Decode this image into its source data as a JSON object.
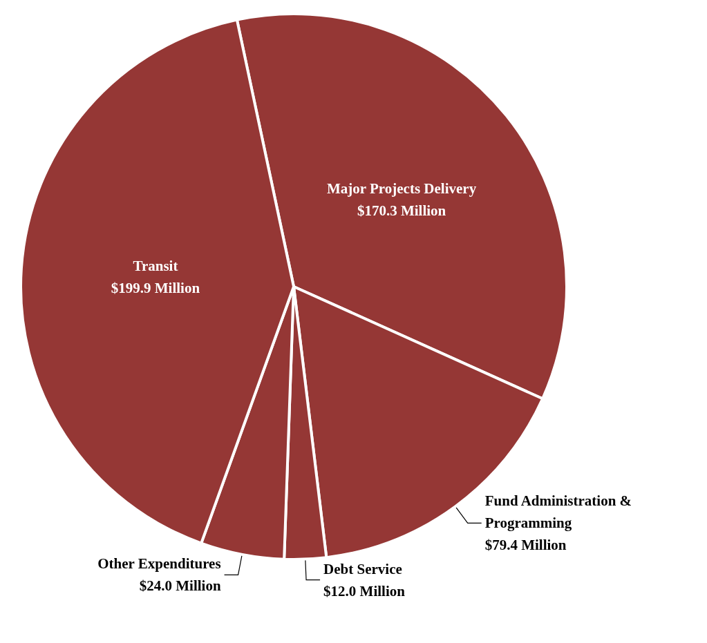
{
  "chart_data": {
    "type": "pie",
    "categories": [
      "Major Projects Delivery",
      "Fund Administration & Programming",
      "Debt Service",
      "Other Expenditures",
      "Transit"
    ],
    "values": [
      170.3,
      79.4,
      12.0,
      24.0,
      199.9
    ],
    "colors": [
      "#953735",
      "#953735",
      "#953735",
      "#953735",
      "#953735"
    ],
    "value_labels": [
      "$170.3 Million",
      "$79.4 Million",
      "$12.0 Million",
      "$24.0 Million",
      "$199.9 Million"
    ]
  }
}
